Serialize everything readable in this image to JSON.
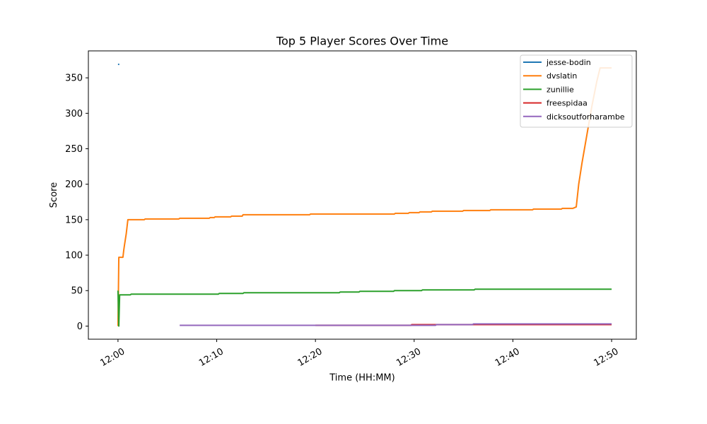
{
  "chart_data": {
    "type": "line",
    "title": "Top 5 Player Scores Over Time",
    "xlabel": "Time (HH:MM)",
    "ylabel": "Score",
    "xlim": [
      "11:57:00",
      "12:52:30"
    ],
    "ylim": [
      -18.5,
      388
    ],
    "x_ticks": [
      "12:00",
      "12:10",
      "12:20",
      "12:30",
      "12:40",
      "12:50"
    ],
    "y_ticks": [
      0,
      50,
      100,
      150,
      200,
      250,
      300,
      350
    ],
    "grid": false,
    "legend_position": "upper right",
    "series": [
      {
        "name": "jesse-bodin",
        "color": "#1f77b4",
        "points": [
          [
            "12:00:00",
            369
          ],
          [
            "12:00:08",
            369
          ]
        ]
      },
      {
        "name": "dvslatin",
        "color": "#ff7f0e",
        "points": [
          [
            "12:00:00",
            0
          ],
          [
            "12:00:05",
            97
          ],
          [
            "12:00:30",
            97
          ],
          [
            "12:00:35",
            107
          ],
          [
            "12:00:40",
            115
          ],
          [
            "12:00:50",
            130
          ],
          [
            "12:01:00",
            150
          ],
          [
            "12:02:40",
            150
          ],
          [
            "12:02:45",
            151
          ],
          [
            "12:06:10",
            151
          ],
          [
            "12:06:15",
            152
          ],
          [
            "12:09:15",
            152
          ],
          [
            "12:09:20",
            153
          ],
          [
            "12:09:45",
            153
          ],
          [
            "12:09:50",
            154
          ],
          [
            "12:11:25",
            154
          ],
          [
            "12:11:30",
            155
          ],
          [
            "12:12:35",
            155
          ],
          [
            "12:12:40",
            157
          ],
          [
            "12:19:25",
            157
          ],
          [
            "12:19:30",
            158
          ],
          [
            "12:28:00",
            158
          ],
          [
            "12:28:05",
            159
          ],
          [
            "12:29:25",
            159
          ],
          [
            "12:29:30",
            160
          ],
          [
            "12:30:30",
            160
          ],
          [
            "12:30:35",
            161
          ],
          [
            "12:31:45",
            161
          ],
          [
            "12:31:50",
            162
          ],
          [
            "12:34:55",
            162
          ],
          [
            "12:35:00",
            163
          ],
          [
            "12:37:40",
            163
          ],
          [
            "12:37:45",
            164
          ],
          [
            "12:42:00",
            164
          ],
          [
            "12:42:05",
            165
          ],
          [
            "12:44:55",
            165
          ],
          [
            "12:45:00",
            166
          ],
          [
            "12:46:05",
            166
          ],
          [
            "12:46:25",
            168
          ],
          [
            "12:46:40",
            200
          ],
          [
            "12:47:00",
            230
          ],
          [
            "12:47:30",
            270
          ],
          [
            "12:48:00",
            310
          ],
          [
            "12:48:30",
            345
          ],
          [
            "12:48:50",
            364
          ],
          [
            "12:50:00",
            364
          ]
        ]
      },
      {
        "name": "zunillie",
        "color": "#2ca02c",
        "points": [
          [
            "12:00:00",
            50
          ],
          [
            "12:00:05",
            0
          ],
          [
            "12:00:10",
            44
          ],
          [
            "12:01:15",
            44
          ],
          [
            "12:01:20",
            45
          ],
          [
            "12:10:10",
            45
          ],
          [
            "12:10:15",
            46
          ],
          [
            "12:12:40",
            46
          ],
          [
            "12:12:45",
            47
          ],
          [
            "12:22:25",
            47
          ],
          [
            "12:22:30",
            48
          ],
          [
            "12:24:25",
            48
          ],
          [
            "12:24:30",
            49
          ],
          [
            "12:27:55",
            49
          ],
          [
            "12:28:00",
            50
          ],
          [
            "12:30:45",
            50
          ],
          [
            "12:30:50",
            51
          ],
          [
            "12:36:05",
            51
          ],
          [
            "12:36:10",
            52
          ],
          [
            "12:50:00",
            52
          ]
        ]
      },
      {
        "name": "freespidaa",
        "color": "#d62728",
        "points": [
          [
            "12:20:00",
            1
          ],
          [
            "12:29:40",
            1
          ],
          [
            "12:29:45",
            2
          ],
          [
            "12:50:00",
            2
          ]
        ]
      },
      {
        "name": "dicksoutforharambe",
        "color": "#9467bd",
        "points": [
          [
            "12:06:15",
            1
          ],
          [
            "12:32:10",
            1
          ],
          [
            "12:32:15",
            2
          ],
          [
            "12:35:55",
            2
          ],
          [
            "12:36:00",
            3
          ],
          [
            "12:50:00",
            3
          ]
        ]
      }
    ]
  }
}
